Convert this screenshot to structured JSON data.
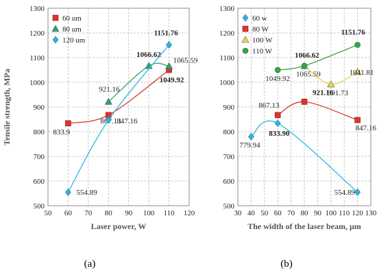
{
  "chart_data": [
    {
      "type": "line",
      "panel_label": "(a)",
      "xlabel": "Laser power, W",
      "ylabel": "Tensile strength, MPa",
      "xlim": [
        50,
        120
      ],
      "ylim": [
        500,
        1300
      ],
      "xticks": [
        50,
        60,
        70,
        80,
        90,
        100,
        110,
        120
      ],
      "yticks": [
        500,
        600,
        700,
        800,
        900,
        1000,
        1100,
        1200,
        1300
      ],
      "grid": true,
      "legend_position": "top-left",
      "series": [
        {
          "name": "60 um",
          "color": "#e0332d",
          "marker": "square",
          "x": [
            60,
            80,
            110
          ],
          "y": [
            833.9,
            867.13,
            1049.92
          ],
          "labels": [
            "833.9",
            "867.13",
            "1049.92"
          ]
        },
        {
          "name": "80 um",
          "color": "#2aa56e",
          "marker": "triangle",
          "x": [
            80,
            100,
            110
          ],
          "y": [
            921.16,
            1066.62,
            1065.59
          ],
          "labels": [
            "921.16",
            "1066.62",
            "1065.59"
          ]
        },
        {
          "name": "120 um",
          "color": "#2db6e3",
          "marker": "diamond",
          "x": [
            60,
            80,
            110
          ],
          "y": [
            554.89,
            847.16,
            1151.76
          ],
          "labels": [
            "554.89",
            "847.16",
            "1151.76"
          ]
        }
      ]
    },
    {
      "type": "line",
      "panel_label": "(b)",
      "xlabel": "The width of the laser beam, μm",
      "ylabel": "",
      "xlim": [
        30,
        130
      ],
      "ylim": [
        500,
        1300
      ],
      "xticks": [
        30,
        40,
        50,
        60,
        70,
        80,
        90,
        100,
        110,
        120,
        130
      ],
      "yticks": [
        500,
        600,
        700,
        800,
        900,
        1000,
        1100,
        1200,
        1300
      ],
      "grid": true,
      "legend_position": "top-left",
      "series": [
        {
          "name": "60 w",
          "color": "#2db6e3",
          "marker": "diamond",
          "x": [
            40,
            60,
            120
          ],
          "y": [
            779.94,
            833.9,
            554.89
          ],
          "labels": [
            "779.94",
            "833.90",
            "554.89"
          ]
        },
        {
          "name": "80 W",
          "color": "#e0332d",
          "marker": "square",
          "x": [
            60,
            80,
            120
          ],
          "y": [
            867.13,
            921.16,
            847.16
          ],
          "labels": [
            "867.13",
            "921.16",
            "847.16"
          ]
        },
        {
          "name": "100 W",
          "color": "#e8d84a",
          "marker": "triangle",
          "x": [
            80,
            100,
            120
          ],
          "y": [
            1065.59,
            991.73,
            1041.81
          ],
          "labels": [
            "1065.59",
            "991.73",
            "1041.81"
          ]
        },
        {
          "name": "110 W",
          "color": "#37a647",
          "marker": "circle",
          "x": [
            60,
            80,
            120
          ],
          "y": [
            1049.92,
            1066.62,
            1151.76
          ],
          "labels": [
            "1049.92",
            "1066.62",
            "1151.76"
          ]
        }
      ]
    }
  ]
}
